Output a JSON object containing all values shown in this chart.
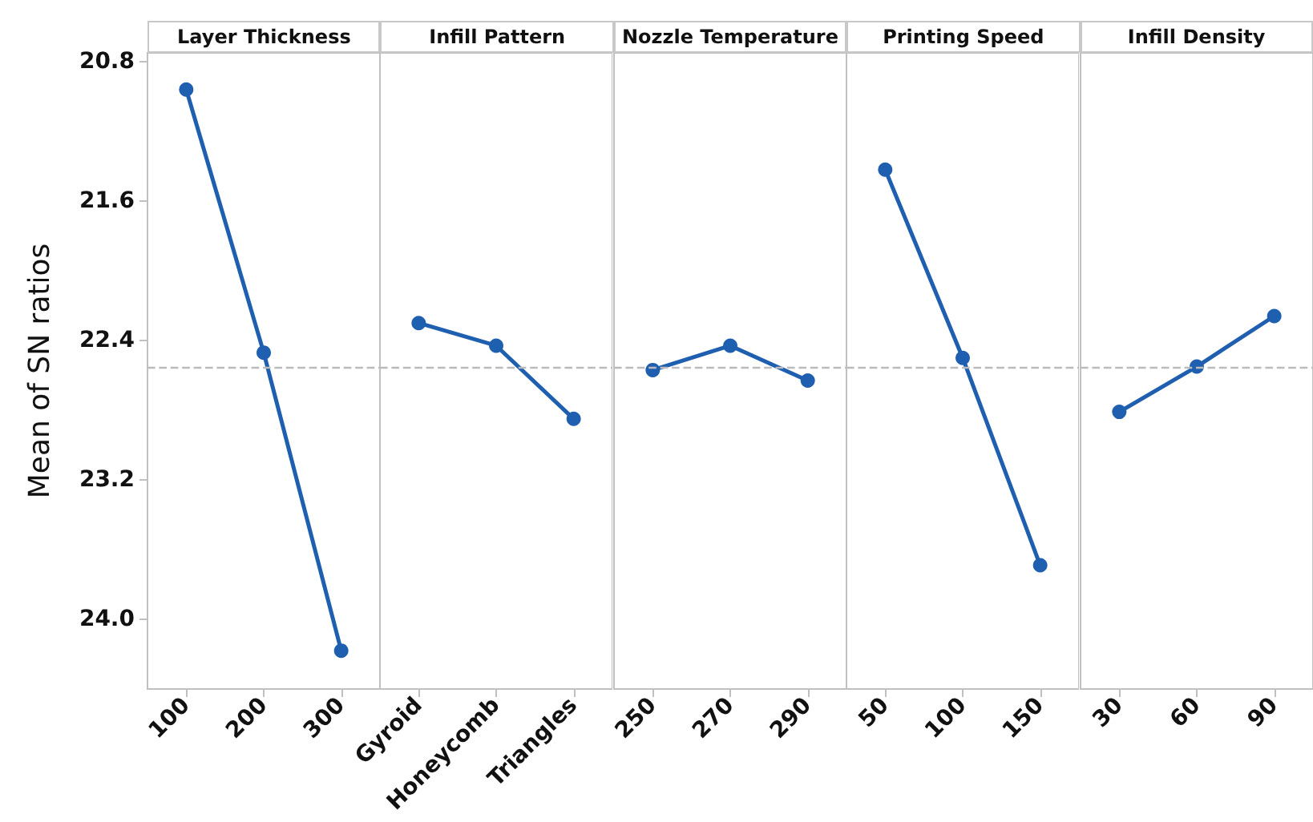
{
  "chart_data": [
    {
      "type": "line",
      "title": "Layer Thickness",
      "ylabel": "Mean of SN ratios",
      "categories": [
        "100",
        "200",
        "300"
      ],
      "series": [
        {
          "color": "#1f5fb0",
          "values": [
            20.96,
            22.47,
            24.18
          ]
        }
      ],
      "ylim": [
        24.4,
        20.75
      ],
      "yticks": [
        20.8,
        21.6,
        22.4,
        23.2,
        {
          "value": 24,
          "label": "24.0"
        }
      ],
      "ref_lines": [
        {
          "axis": "y",
          "value": 22.55,
          "color": "#bbbbbb",
          "line_style": "dashed"
        }
      ],
      "marker": "circle",
      "grid": false
    },
    {
      "type": "line",
      "title": "Infill Pattern",
      "categories": [
        "Gyroid",
        "Honeycomb",
        "Triangles"
      ],
      "series": [
        {
          "color": "#1f5fb0",
          "values": [
            22.3,
            22.43,
            22.85
          ]
        }
      ],
      "ylim": [
        24.4,
        20.75
      ],
      "tick_labels": "x",
      "ref_lines": [
        {
          "axis": "y",
          "value": 22.55,
          "color": "#bbbbbb",
          "line_style": "dashed"
        }
      ],
      "marker": "circle",
      "grid": false
    },
    {
      "type": "line",
      "title": "Nozzle Temperature",
      "categories": [
        "250",
        "270",
        "290"
      ],
      "series": [
        {
          "color": "#1f5fb0",
          "values": [
            22.57,
            22.43,
            22.63
          ]
        }
      ],
      "ylim": [
        24.4,
        20.75
      ],
      "tick_labels": "x",
      "ref_lines": [
        {
          "axis": "y",
          "value": 22.55,
          "color": "#bbbbbb",
          "line_style": "dashed"
        }
      ],
      "marker": "circle",
      "grid": false
    },
    {
      "type": "line",
      "title": "Printing Speed",
      "categories": [
        "50",
        "100",
        "150"
      ],
      "series": [
        {
          "color": "#1f5fb0",
          "values": [
            21.42,
            22.5,
            23.69
          ]
        }
      ],
      "ylim": [
        24.4,
        20.75
      ],
      "tick_labels": "x",
      "ref_lines": [
        {
          "axis": "y",
          "value": 22.55,
          "color": "#bbbbbb",
          "line_style": "dashed"
        }
      ],
      "marker": "circle",
      "grid": false
    },
    {
      "type": "line",
      "title": "Infill Density",
      "categories": [
        "30",
        "60",
        "90"
      ],
      "series": [
        {
          "color": "#1f5fb0",
          "values": [
            22.81,
            22.55,
            22.26
          ]
        }
      ],
      "ylim": [
        24.4,
        20.75
      ],
      "tick_labels": "x",
      "ref_lines": [
        {
          "axis": "y",
          "value": 22.55,
          "color": "#bbbbbb",
          "line_style": "dashed"
        }
      ],
      "marker": "circle",
      "grid": false
    }
  ]
}
